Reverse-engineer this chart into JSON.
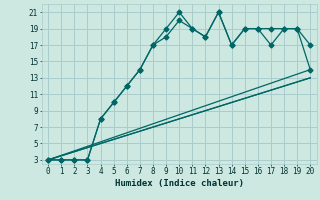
{
  "xlabel": "Humidex (Indice chaleur)",
  "xlim": [
    0,
    20
  ],
  "ylim": [
    3,
    21
  ],
  "xticks": [
    0,
    1,
    2,
    3,
    4,
    5,
    6,
    7,
    8,
    9,
    10,
    11,
    12,
    13,
    14,
    15,
    16,
    17,
    18,
    19,
    20
  ],
  "yticks": [
    3,
    5,
    7,
    9,
    11,
    13,
    15,
    17,
    19,
    21
  ],
  "bg_color": "#cce8e0",
  "grid_color": "#aacccc",
  "line_color": "#006666",
  "line1_x": [
    0,
    1,
    2,
    3,
    4,
    5,
    6,
    7,
    8,
    9,
    10,
    11,
    12,
    13,
    14,
    15,
    16,
    17,
    18,
    19,
    20
  ],
  "line1_y": [
    3,
    3,
    3,
    3,
    8,
    10,
    12,
    14,
    17,
    18,
    20,
    19,
    18,
    21,
    17,
    19,
    19,
    19,
    19,
    19,
    17
  ],
  "line2_x": [
    0,
    1,
    2,
    3,
    4,
    5,
    6,
    7,
    8,
    9,
    10,
    11,
    12,
    13,
    14,
    15,
    16,
    17,
    18,
    19,
    20
  ],
  "line2_y": [
    3,
    3,
    3,
    3,
    8,
    10,
    12,
    14,
    17,
    19,
    21,
    19,
    18,
    21,
    17,
    19,
    19,
    17,
    19,
    19,
    14
  ],
  "line3_x": [
    0,
    20
  ],
  "line3_y": [
    3,
    14
  ],
  "line4_x": [
    0,
    20
  ],
  "line4_y": [
    3,
    13
  ],
  "line5_x": [
    0,
    20
  ],
  "line5_y": [
    3,
    13
  ]
}
